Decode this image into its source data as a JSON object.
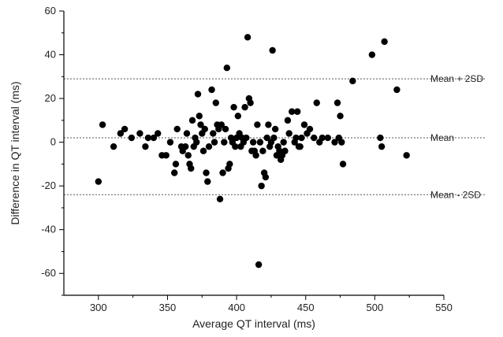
{
  "chart_data": {
    "type": "scatter",
    "title": "",
    "xlabel": "Average QT interval (ms)",
    "ylabel": "Difference in QT interval (ms)",
    "xlim": [
      275,
      550
    ],
    "ylim": [
      -70,
      60
    ],
    "xticks": [
      300,
      350,
      400,
      450,
      500,
      550
    ],
    "yticks": [
      -60,
      -40,
      -20,
      0,
      20,
      40,
      60
    ],
    "grid": false,
    "reference_lines": [
      {
        "label": "Mean + 2SD",
        "y": 29
      },
      {
        "label": "Mean",
        "y": 2
      },
      {
        "label": "Mean - 2SD",
        "y": -24
      }
    ],
    "points": [
      [
        300,
        -18
      ],
      [
        303,
        8
      ],
      [
        311,
        -2
      ],
      [
        316,
        4
      ],
      [
        319,
        6
      ],
      [
        324,
        2
      ],
      [
        330,
        4
      ],
      [
        334,
        -2
      ],
      [
        336,
        2
      ],
      [
        340,
        2
      ],
      [
        343,
        4
      ],
      [
        346,
        -6
      ],
      [
        349,
        -6
      ],
      [
        352,
        0
      ],
      [
        355,
        -14
      ],
      [
        356,
        -10
      ],
      [
        357,
        6
      ],
      [
        360,
        -2
      ],
      [
        361,
        -4
      ],
      [
        363,
        -2
      ],
      [
        364,
        4
      ],
      [
        365,
        -6
      ],
      [
        366,
        -10
      ],
      [
        367,
        -12
      ],
      [
        368,
        10
      ],
      [
        369,
        -2
      ],
      [
        370,
        2
      ],
      [
        371,
        0
      ],
      [
        372,
        22
      ],
      [
        373,
        12
      ],
      [
        374,
        8
      ],
      [
        375,
        4
      ],
      [
        376,
        -4
      ],
      [
        377,
        6
      ],
      [
        378,
        -14
      ],
      [
        379,
        -18
      ],
      [
        380,
        -2
      ],
      [
        382,
        24
      ],
      [
        383,
        4
      ],
      [
        384,
        0
      ],
      [
        385,
        18
      ],
      [
        386,
        8
      ],
      [
        387,
        6
      ],
      [
        388,
        -26
      ],
      [
        389,
        8
      ],
      [
        390,
        -14
      ],
      [
        391,
        0
      ],
      [
        392,
        6
      ],
      [
        393,
        34
      ],
      [
        394,
        -12
      ],
      [
        395,
        -10
      ],
      [
        396,
        2
      ],
      [
        397,
        0
      ],
      [
        398,
        16
      ],
      [
        399,
        -2
      ],
      [
        400,
        2
      ],
      [
        401,
        12
      ],
      [
        402,
        4
      ],
      [
        403,
        -2
      ],
      [
        404,
        2
      ],
      [
        405,
        0
      ],
      [
        406,
        16
      ],
      [
        407,
        2
      ],
      [
        408,
        48
      ],
      [
        409,
        20
      ],
      [
        410,
        18
      ],
      [
        411,
        -4
      ],
      [
        412,
        0
      ],
      [
        413,
        -4
      ],
      [
        414,
        -6
      ],
      [
        415,
        8
      ],
      [
        416,
        -56
      ],
      [
        417,
        0
      ],
      [
        418,
        -20
      ],
      [
        419,
        -4
      ],
      [
        420,
        -14
      ],
      [
        421,
        -16
      ],
      [
        422,
        2
      ],
      [
        423,
        8
      ],
      [
        424,
        -2
      ],
      [
        425,
        0
      ],
      [
        426,
        42
      ],
      [
        427,
        2
      ],
      [
        428,
        6
      ],
      [
        429,
        -6
      ],
      [
        430,
        -2
      ],
      [
        431,
        -4
      ],
      [
        432,
        -8
      ],
      [
        433,
        -6
      ],
      [
        434,
        0
      ],
      [
        435,
        -4
      ],
      [
        437,
        10
      ],
      [
        438,
        4
      ],
      [
        440,
        14
      ],
      [
        442,
        0
      ],
      [
        443,
        2
      ],
      [
        444,
        14
      ],
      [
        445,
        -2
      ],
      [
        446,
        -2
      ],
      [
        447,
        2
      ],
      [
        449,
        8
      ],
      [
        451,
        4
      ],
      [
        453,
        6
      ],
      [
        456,
        2
      ],
      [
        458,
        18
      ],
      [
        460,
        0
      ],
      [
        462,
        2
      ],
      [
        466,
        2
      ],
      [
        471,
        0
      ],
      [
        473,
        18
      ],
      [
        474,
        2
      ],
      [
        475,
        12
      ],
      [
        476,
        0
      ],
      [
        477,
        -10
      ],
      [
        484,
        28
      ],
      [
        498,
        40
      ],
      [
        504,
        2
      ],
      [
        505,
        -2
      ],
      [
        507,
        46
      ],
      [
        516,
        24
      ],
      [
        523,
        -6
      ]
    ]
  }
}
